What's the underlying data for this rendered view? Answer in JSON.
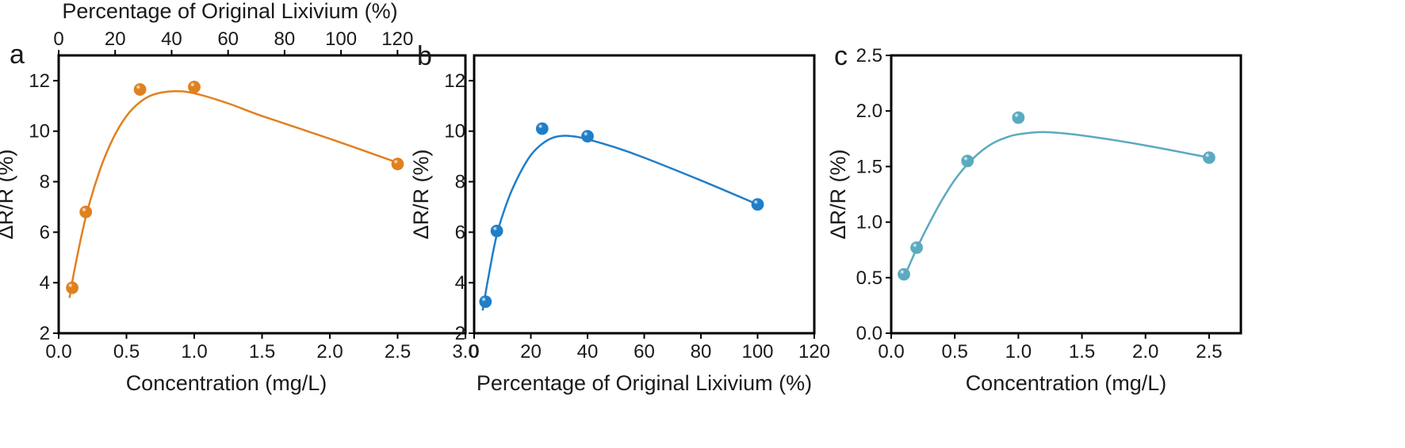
{
  "colors": {
    "axis": "#000000",
    "a": "#E0811F",
    "b": "#1F7EC8",
    "c": "#5AAAC0"
  },
  "chart_data": [
    {
      "panel": "a",
      "type": "scatter",
      "xlabel": "Concentration (mg/L)",
      "ylabel": "ΔR/R (%)",
      "xlim": [
        0,
        3.0
      ],
      "ylim": [
        2,
        13
      ],
      "xticks": [
        "0.0",
        "0.5",
        "1.0",
        "1.5",
        "2.0",
        "2.5",
        "3.0"
      ],
      "yticks": [
        "2",
        "4",
        "6",
        "8",
        "10",
        "12"
      ],
      "top_axis": {
        "label": "Percentage of Original Lixivium (%)",
        "lim": [
          0,
          120
        ],
        "ticks": [
          "0",
          "20",
          "40",
          "60",
          "80",
          "100",
          "120"
        ]
      },
      "points": [
        {
          "x": 0.1,
          "y": 3.8
        },
        {
          "x": 0.2,
          "y": 6.8
        },
        {
          "x": 0.6,
          "y": 11.65
        },
        {
          "x": 1.0,
          "y": 11.75
        },
        {
          "x": 2.5,
          "y": 8.7
        }
      ],
      "fit_curve": [
        [
          0.08,
          3.4
        ],
        [
          0.12,
          4.6
        ],
        [
          0.2,
          6.6
        ],
        [
          0.3,
          8.4
        ],
        [
          0.4,
          9.7
        ],
        [
          0.5,
          10.6
        ],
        [
          0.6,
          11.15
        ],
        [
          0.7,
          11.45
        ],
        [
          0.85,
          11.58
        ],
        [
          1.0,
          11.5
        ],
        [
          1.25,
          11.1
        ],
        [
          1.5,
          10.6
        ],
        [
          2.0,
          9.7
        ],
        [
          2.5,
          8.75
        ]
      ]
    },
    {
      "panel": "b",
      "type": "scatter",
      "xlabel": "Percentage of Original Lixivium (%)",
      "ylabel": "ΔR/R (%)",
      "xlim": [
        0,
        120
      ],
      "ylim": [
        2,
        13
      ],
      "xticks": [
        "0",
        "20",
        "40",
        "60",
        "80",
        "100",
        "120"
      ],
      "yticks": [
        "2",
        "4",
        "6",
        "8",
        "10",
        "12"
      ],
      "points": [
        {
          "x": 4,
          "y": 3.25
        },
        {
          "x": 8,
          "y": 6.05
        },
        {
          "x": 24,
          "y": 10.1
        },
        {
          "x": 40,
          "y": 9.8
        },
        {
          "x": 100,
          "y": 7.1
        }
      ],
      "fit_curve": [
        [
          3,
          2.9
        ],
        [
          5,
          4.2
        ],
        [
          8,
          5.9
        ],
        [
          12,
          7.3
        ],
        [
          16,
          8.3
        ],
        [
          20,
          9.05
        ],
        [
          24,
          9.5
        ],
        [
          28,
          9.75
        ],
        [
          32,
          9.82
        ],
        [
          36,
          9.78
        ],
        [
          40,
          9.68
        ],
        [
          50,
          9.35
        ],
        [
          60,
          8.95
        ],
        [
          80,
          8.05
        ],
        [
          100,
          7.1
        ]
      ]
    },
    {
      "panel": "c",
      "type": "scatter",
      "xlabel": "Concentration (mg/L)",
      "ylabel": "ΔR/R (%)",
      "xlim": [
        0,
        2.75
      ],
      "ylim": [
        0,
        2.5
      ],
      "xticks": [
        "0.0",
        "0.5",
        "1.0",
        "1.5",
        "2.0",
        "2.5"
      ],
      "yticks": [
        "0.0",
        "0.5",
        "1.0",
        "1.5",
        "2.0",
        "2.5"
      ],
      "points": [
        {
          "x": 0.1,
          "y": 0.53
        },
        {
          "x": 0.2,
          "y": 0.77
        },
        {
          "x": 0.6,
          "y": 1.55
        },
        {
          "x": 1.0,
          "y": 1.94
        },
        {
          "x": 2.5,
          "y": 1.58
        }
      ],
      "fit_curve": [
        [
          0.1,
          0.5
        ],
        [
          0.2,
          0.76
        ],
        [
          0.3,
          0.99
        ],
        [
          0.4,
          1.2
        ],
        [
          0.5,
          1.38
        ],
        [
          0.6,
          1.52
        ],
        [
          0.7,
          1.63
        ],
        [
          0.8,
          1.71
        ],
        [
          0.9,
          1.76
        ],
        [
          1.0,
          1.79
        ],
        [
          1.2,
          1.81
        ],
        [
          1.5,
          1.78
        ],
        [
          2.0,
          1.69
        ],
        [
          2.5,
          1.58
        ]
      ]
    }
  ]
}
